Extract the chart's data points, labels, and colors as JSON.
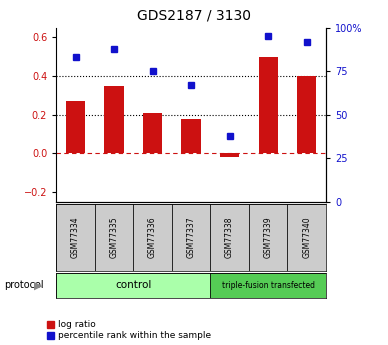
{
  "title": "GDS2187 / 3130",
  "samples": [
    "GSM77334",
    "GSM77335",
    "GSM77336",
    "GSM77337",
    "GSM77338",
    "GSM77339",
    "GSM77340"
  ],
  "log_ratio": [
    0.27,
    0.35,
    0.21,
    0.18,
    -0.02,
    0.5,
    0.4
  ],
  "percentile_rank": [
    83,
    88,
    75,
    67,
    38,
    95,
    92
  ],
  "bar_color": "#cc1111",
  "square_color": "#1111cc",
  "left_ylim": [
    -0.25,
    0.65
  ],
  "right_ylim": [
    0,
    100
  ],
  "left_yticks": [
    -0.2,
    0.0,
    0.2,
    0.4,
    0.6
  ],
  "right_yticks": [
    0,
    25,
    50,
    75,
    100
  ],
  "right_yticklabels": [
    "0",
    "25",
    "50",
    "75",
    "100%"
  ],
  "hline_dotted": [
    0.4,
    0.2
  ],
  "hline_dashed_red": 0.0,
  "control_samples": 4,
  "transfected_samples": 3,
  "control_label": "control",
  "transfected_label": "triple-fusion transfected",
  "protocol_label": "protocol",
  "legend_log_ratio": "log ratio",
  "legend_percentile": "percentile rank within the sample",
  "control_color": "#aaffaa",
  "transfected_color": "#55cc55",
  "sample_box_color": "#cccccc",
  "title_fontsize": 10,
  "tick_fontsize": 7,
  "bar_width": 0.5
}
